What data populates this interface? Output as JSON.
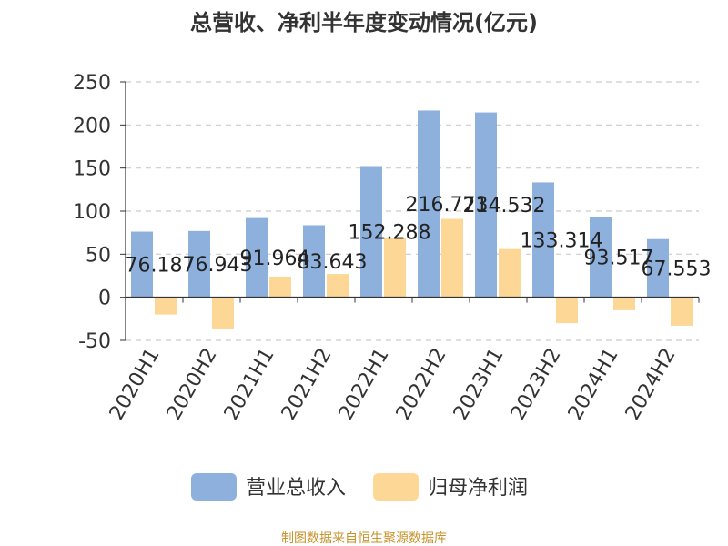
{
  "chart_data": {
    "type": "bar",
    "title": "总营收、净利半年度变动情况(亿元)",
    "categories": [
      "2020H1",
      "2020H2",
      "2021H1",
      "2021H2",
      "2022H1",
      "2022H2",
      "2023H1",
      "2023H2",
      "2024H1",
      "2024H2"
    ],
    "series": [
      {
        "name": "营业总收入",
        "color": "#8eb0dd",
        "values": [
          76.187,
          76.943,
          91.964,
          83.643,
          152.288,
          216.773,
          214.532,
          133.314,
          93.517,
          67.553
        ],
        "labels": [
          "76.187",
          "76.943",
          "91.964",
          "83.643",
          "152.288",
          "216.773",
          "214.532",
          "133.314",
          "93.517",
          "67.553"
        ]
      },
      {
        "name": "归母净利润",
        "color": "#fdd795",
        "values": [
          -20,
          -37,
          24,
          27,
          69,
          91,
          56,
          -30,
          -15,
          -33
        ]
      }
    ],
    "ylim": [
      -50,
      250
    ],
    "yticks": [
      -50,
      0,
      50,
      100,
      150,
      200,
      250
    ],
    "ytick_labels": [
      "-50",
      "0",
      "50",
      "100",
      "150",
      "200",
      "250"
    ],
    "grid": true,
    "legend_position": "bottom"
  },
  "source_note": "制图数据来自恒生聚源数据库"
}
